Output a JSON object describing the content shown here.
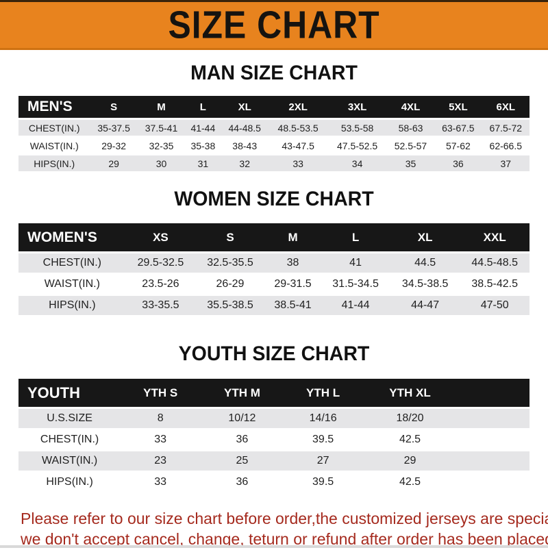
{
  "banner": {
    "title": "SIZE CHART",
    "bg_color": "#E8831E",
    "text_color": "#151310"
  },
  "sections": [
    {
      "key": "men",
      "title": "MAN SIZE CHART",
      "header_label": "MEN'S",
      "header_bg": "#171717",
      "columns": [
        "S",
        "M",
        "L",
        "XL",
        "2XL",
        "3XL",
        "4XL",
        "5XL",
        "6XL"
      ],
      "rows": [
        {
          "label": "CHEST(IN.)",
          "values": [
            "35-37.5",
            "37.5-41",
            "41-44",
            "44-48.5",
            "48.5-53.5",
            "53.5-58",
            "58-63",
            "63-67.5",
            "67.5-72"
          ]
        },
        {
          "label": "WAIST(IN.)",
          "values": [
            "29-32",
            "32-35",
            "35-38",
            "38-43",
            "43-47.5",
            "47.5-52.5",
            "52.5-57",
            "57-62",
            "62-66.5"
          ]
        },
        {
          "label": "HIPS(IN.)",
          "values": [
            "29",
            "30",
            "31",
            "32",
            "33",
            "34",
            "35",
            "36",
            "37"
          ]
        }
      ]
    },
    {
      "key": "women",
      "title": "WOMEN SIZE CHART",
      "header_label": "WOMEN'S",
      "header_bg": "#171717",
      "columns": [
        "XS",
        "S",
        "M",
        "L",
        "XL",
        "XXL"
      ],
      "rows": [
        {
          "label": "CHEST(IN.)",
          "values": [
            "29.5-32.5",
            "32.5-35.5",
            "38",
            "41",
            "44.5",
            "44.5-48.5"
          ]
        },
        {
          "label": "WAIST(IN.)",
          "values": [
            "23.5-26",
            "26-29",
            "29-31.5",
            "31.5-34.5",
            "34.5-38.5",
            "38.5-42.5"
          ]
        },
        {
          "label": "HIPS(IN.)",
          "values": [
            "33-35.5",
            "35.5-38.5",
            "38.5-41",
            "41-44",
            "44-47",
            "47-50"
          ]
        }
      ]
    },
    {
      "key": "youth",
      "title": "YOUTH SIZE CHART",
      "header_label": "YOUTH",
      "header_bg": "#171717",
      "columns": [
        "YTH S",
        "YTH M",
        "YTH L",
        "YTH XL"
      ],
      "rows": [
        {
          "label": "U.S.SIZE",
          "values": [
            "8",
            "10/12",
            "14/16",
            "18/20"
          ]
        },
        {
          "label": "CHEST(IN.)",
          "values": [
            "33",
            "36",
            "39.5",
            "42.5"
          ]
        },
        {
          "label": "WAIST(IN.)",
          "values": [
            "23",
            "25",
            "27",
            "29"
          ]
        },
        {
          "label": "HIPS(IN.)",
          "values": [
            "33",
            "36",
            "39.5",
            "42.5"
          ]
        }
      ]
    }
  ],
  "disclaimer": {
    "line1": "Please refer to our size chart before order,the customized jerseys are special products,",
    "line2": "we don't accept cancel, change, teturn or refund after order has been placed!",
    "color": "#A52A1E"
  },
  "row_alt_color": "#E5E5E7"
}
